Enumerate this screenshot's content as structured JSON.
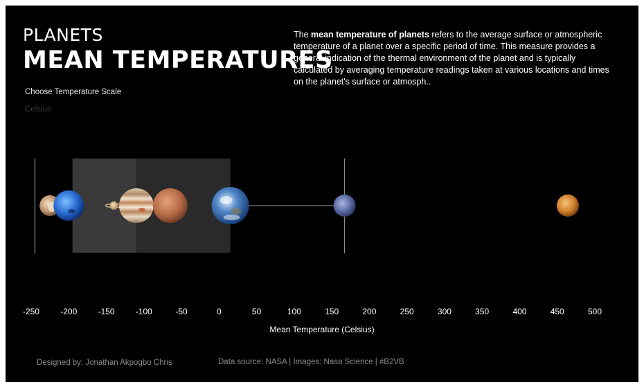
{
  "header": {
    "title_small": "PLANETS",
    "title_big": "MEAN TEMPERATURES",
    "description_bold": "mean temperature of planets",
    "description_pre": "The ",
    "description_post": " refers to the average surface or atmospheric temperature of a planet over a specific period of time. This measure provides a general indication of the thermal environment of the planet and is typically calculated by averaging temperature readings taken at various locations and times on the planet's surface or atmosph.."
  },
  "filter": {
    "label": "Choose Temperature Scale",
    "value": "Celsius"
  },
  "footer": {
    "designer": "Designed by: Jonathan Akpogbo Chris",
    "source": "Data source: NASA | Images: Nasa Science | #B2VB"
  },
  "colors": {
    "background": "#000000",
    "band": "#3a3a3a",
    "band_dark": "#2a2a2a",
    "reference_line": "#8c8c8c",
    "text": "#ffffff"
  },
  "chart_data": {
    "type": "scatter",
    "xlabel": "Mean Temperature (Celsius)",
    "xlim": [
      -260,
      510
    ],
    "x_ticks": [
      -250,
      -200,
      -150,
      -100,
      -50,
      0,
      50,
      100,
      150,
      200,
      250,
      300,
      350,
      400,
      450,
      500
    ],
    "reference_lines": [
      -245,
      167
    ],
    "bands": [
      {
        "from": -195,
        "to": -110
      },
      {
        "from": -110,
        "to": 15
      }
    ],
    "connector": {
      "from": 15,
      "to": 167
    },
    "points": [
      {
        "x": -225,
        "size": 30,
        "icon": "pluto-icon"
      },
      {
        "x": -200,
        "size": 44,
        "icon": "neptune-icon"
      },
      {
        "x": -140,
        "size": 16,
        "icon": "saturn-icon"
      },
      {
        "x": -110,
        "size": 50,
        "icon": "jupiter-icon"
      },
      {
        "x": -65,
        "size": 50,
        "icon": "mars-icon"
      },
      {
        "x": 15,
        "size": 54,
        "icon": "earth-icon"
      },
      {
        "x": 167,
        "size": 32,
        "icon": "mercury-icon"
      },
      {
        "x": 464,
        "size": 32,
        "icon": "venus-icon"
      }
    ]
  }
}
